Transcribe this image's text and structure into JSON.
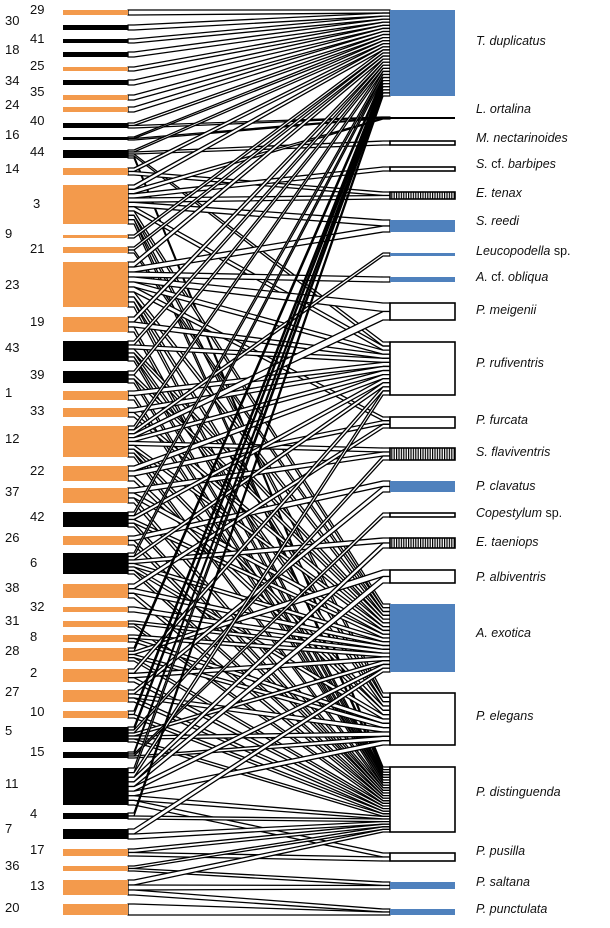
{
  "colors": {
    "plant_orange": "#F39A4C",
    "plant_black": "#000000",
    "pollinator_blue": "#4F81BD",
    "link_fill": "#FFFFFF",
    "link_stroke": "#000000"
  },
  "plants": [
    {
      "id": "29",
      "fill": "orange"
    },
    {
      "id": "30",
      "fill": "black"
    },
    {
      "id": "41",
      "fill": "black"
    },
    {
      "id": "18",
      "fill": "black"
    },
    {
      "id": "25",
      "fill": "orange"
    },
    {
      "id": "34",
      "fill": "black"
    },
    {
      "id": "35",
      "fill": "orange"
    },
    {
      "id": "24",
      "fill": "orange"
    },
    {
      "id": "40",
      "fill": "black"
    },
    {
      "id": "16",
      "fill": "black"
    },
    {
      "id": "44",
      "fill": "black"
    },
    {
      "id": "14",
      "fill": "orange"
    },
    {
      "id": "3",
      "fill": "orange"
    },
    {
      "id": "9",
      "fill": "orange"
    },
    {
      "id": "21",
      "fill": "orange"
    },
    {
      "id": "23",
      "fill": "orange"
    },
    {
      "id": "19",
      "fill": "orange"
    },
    {
      "id": "43",
      "fill": "black"
    },
    {
      "id": "39",
      "fill": "black"
    },
    {
      "id": "1",
      "fill": "orange"
    },
    {
      "id": "33",
      "fill": "orange"
    },
    {
      "id": "12",
      "fill": "orange"
    },
    {
      "id": "22",
      "fill": "orange"
    },
    {
      "id": "37",
      "fill": "orange"
    },
    {
      "id": "42",
      "fill": "black"
    },
    {
      "id": "26",
      "fill": "orange"
    },
    {
      "id": "6",
      "fill": "black"
    },
    {
      "id": "38",
      "fill": "orange"
    },
    {
      "id": "32",
      "fill": "orange"
    },
    {
      "id": "31",
      "fill": "orange"
    },
    {
      "id": "8",
      "fill": "orange"
    },
    {
      "id": "28",
      "fill": "orange"
    },
    {
      "id": "2",
      "fill": "orange"
    },
    {
      "id": "27",
      "fill": "orange"
    },
    {
      "id": "10",
      "fill": "orange"
    },
    {
      "id": "5",
      "fill": "black"
    },
    {
      "id": "15",
      "fill": "black"
    },
    {
      "id": "11",
      "fill": "black"
    },
    {
      "id": "4",
      "fill": "black"
    },
    {
      "id": "7",
      "fill": "black"
    },
    {
      "id": "17",
      "fill": "orange"
    },
    {
      "id": "36",
      "fill": "orange"
    },
    {
      "id": "13",
      "fill": "orange"
    },
    {
      "id": "20",
      "fill": "orange"
    }
  ],
  "pollinators": [
    {
      "name": "T. duplicatus",
      "fill": "blue"
    },
    {
      "name": "L. ortalina",
      "fill": "black"
    },
    {
      "name": "M. nectarinoides",
      "fill": "white"
    },
    {
      "name": "S. cf. barbipes",
      "fill": "white"
    },
    {
      "name": "E. tenax",
      "fill": "striped"
    },
    {
      "name": "S. reedi",
      "fill": "blue"
    },
    {
      "name": "Leucopodella sp.",
      "fill": "blue"
    },
    {
      "name": "A. cf. obliqua",
      "fill": "blue"
    },
    {
      "name": "P. meigenii",
      "fill": "white"
    },
    {
      "name": "P. rufiventris",
      "fill": "white"
    },
    {
      "name": "P. furcata",
      "fill": "white"
    },
    {
      "name": "S. flaviventris",
      "fill": "striped"
    },
    {
      "name": "P. clavatus",
      "fill": "blue"
    },
    {
      "name": "Copestylum sp.",
      "fill": "white"
    },
    {
      "name": "E. taeniops",
      "fill": "striped"
    },
    {
      "name": "P. albiventris",
      "fill": "white"
    },
    {
      "name": "A. exotica",
      "fill": "blue"
    },
    {
      "name": "P. elegans",
      "fill": "white"
    },
    {
      "name": "P. distinguenda",
      "fill": "white"
    },
    {
      "name": "P. pusilla",
      "fill": "white"
    },
    {
      "name": "P. saltana",
      "fill": "blue"
    },
    {
      "name": "P. punctulata",
      "fill": "blue"
    }
  ],
  "upright_words": [
    "cf.",
    "sp."
  ],
  "links": {
    "29": [
      0
    ],
    "30": [
      0
    ],
    "41": [
      0
    ],
    "18": [
      0
    ],
    "25": [
      0
    ],
    "34": [
      0
    ],
    "35": [
      0
    ],
    "24": [
      0
    ],
    "40": [
      0,
      1
    ],
    "16": [
      0,
      1
    ],
    "44": [
      0,
      2,
      9,
      18
    ],
    "14": [
      0,
      4
    ],
    "3": [
      0,
      1,
      3,
      4,
      5,
      9,
      16,
      17,
      18
    ],
    "9": [
      0
    ],
    "21": [
      0,
      16
    ],
    "23": [
      0,
      5,
      7,
      8,
      9,
      10,
      16,
      17,
      18
    ],
    "19": [
      0,
      9,
      18
    ],
    "43": [
      0,
      9,
      16,
      17,
      18
    ],
    "39": [
      0,
      16,
      18
    ],
    "1": [
      9,
      18
    ],
    "33": [
      9,
      16
    ],
    "12": [
      0,
      6,
      8,
      9,
      11,
      16,
      17,
      18
    ],
    "22": [
      9,
      10,
      17
    ],
    "37": [
      11,
      16,
      18
    ],
    "42": [
      0,
      9,
      16,
      18
    ],
    "26": [
      12,
      18
    ],
    "6": [
      0,
      9,
      14,
      16,
      17,
      18
    ],
    "38": [
      10,
      16,
      18
    ],
    "32": [
      16
    ],
    "31": [
      16,
      18
    ],
    "8": [
      16,
      17
    ],
    "28": [
      0,
      15,
      17,
      18
    ],
    "2": [
      9,
      16,
      18
    ],
    "27": [
      12,
      17,
      18
    ],
    "10": [
      0,
      18
    ],
    "5": [
      0,
      11,
      16,
      17,
      18
    ],
    "15": [
      0,
      13,
      17
    ],
    "11": [
      0,
      9,
      14,
      15,
      16,
      17,
      18,
      19
    ],
    "4": [
      0,
      18
    ],
    "7": [
      16,
      18
    ],
    "17": [
      18,
      19
    ],
    "36": [
      18,
      20
    ],
    "13": [
      18,
      20,
      21
    ],
    "20": [
      21
    ]
  }
}
